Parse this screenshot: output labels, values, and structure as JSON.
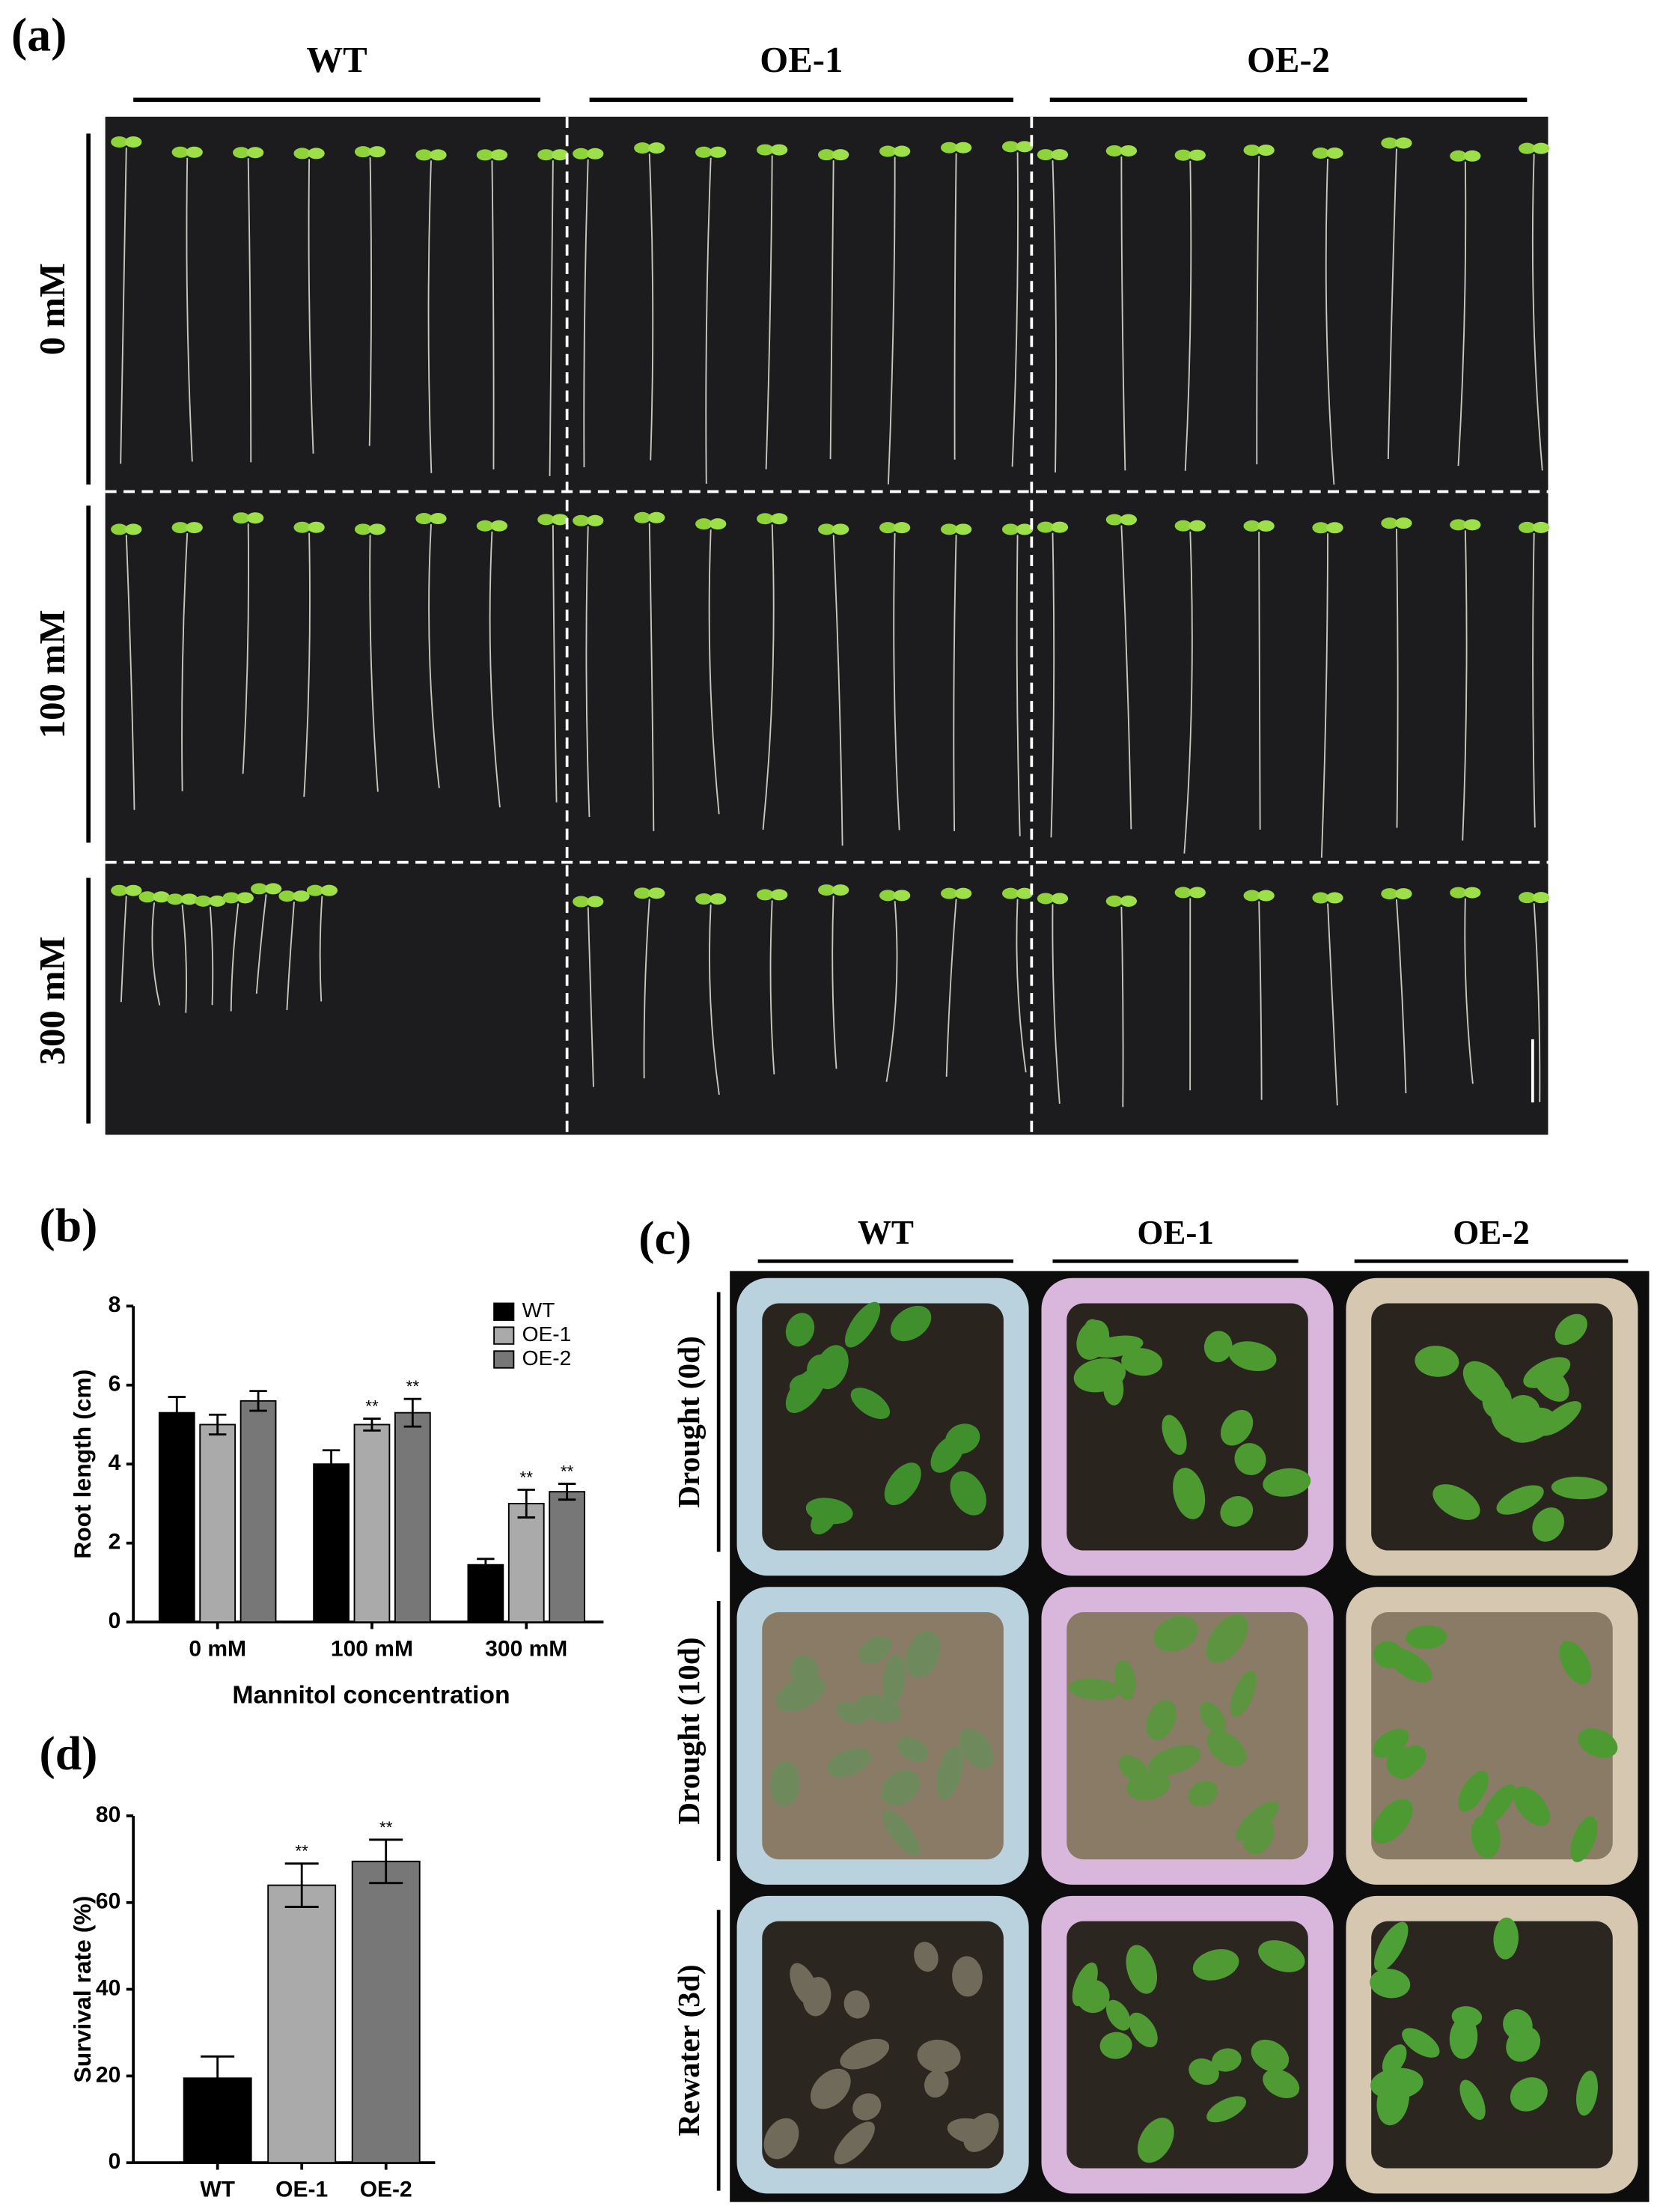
{
  "panel_labels": [
    "(a)",
    "(b)",
    "(c)",
    "(d)"
  ],
  "panel_a": {
    "columns": [
      "WT",
      "OE-1",
      "OE-2"
    ],
    "rows": [
      "0 mM",
      "100 mM",
      "300 mM"
    ]
  },
  "panel_c": {
    "columns": [
      "WT",
      "OE-1",
      "OE-2"
    ],
    "rows": [
      "Drought (0d)",
      "Drought (10d)",
      "Rewater (3d)"
    ]
  },
  "chart_data": [
    {
      "type": "bar",
      "ylabel": "Root length (cm)",
      "xlabel": "Mannitol concentration",
      "categories": [
        "0 mM",
        "100 mM",
        "300 mM"
      ],
      "series": [
        {
          "name": "WT",
          "color": "#000000",
          "values": [
            5.3,
            4.0,
            1.45
          ],
          "errors": [
            0.4,
            0.35,
            0.15
          ],
          "significance": [
            null,
            null,
            null
          ]
        },
        {
          "name": "OE-1",
          "color": "#aaaaaa",
          "values": [
            5.0,
            5.0,
            3.0
          ],
          "errors": [
            0.25,
            0.15,
            0.35
          ],
          "significance": [
            null,
            "**",
            "**"
          ]
        },
        {
          "name": "OE-2",
          "color": "#777777",
          "values": [
            5.6,
            5.3,
            3.3
          ],
          "errors": [
            0.25,
            0.35,
            0.2
          ],
          "significance": [
            null,
            "**",
            "**"
          ]
        }
      ],
      "ylim": [
        0,
        8
      ],
      "yticks": [
        0,
        2,
        4,
        6,
        8
      ],
      "legend": "upper right"
    },
    {
      "type": "bar",
      "ylabel": "Survival rate (%)",
      "categories": [
        "WT",
        "OE-1",
        "OE-2"
      ],
      "values": [
        19.5,
        64,
        69.5
      ],
      "errors": [
        5,
        5,
        5
      ],
      "significance": [
        null,
        "**",
        "**"
      ],
      "colors": [
        "#000000",
        "#aaaaaa",
        "#777777"
      ],
      "ylim": [
        0,
        80
      ],
      "yticks": [
        0,
        20,
        40,
        60,
        80
      ]
    }
  ]
}
